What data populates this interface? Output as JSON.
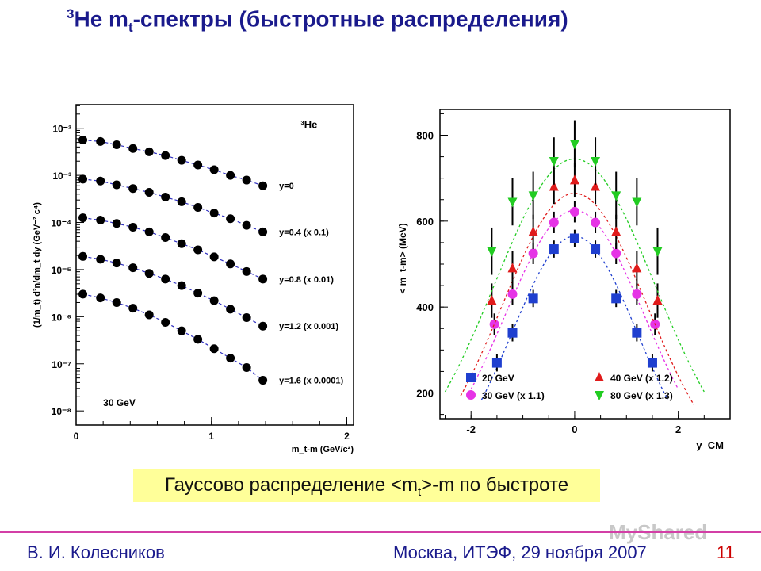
{
  "slide": {
    "title_sup": "3",
    "title_a": "He m",
    "title_sub": "t",
    "title_b": "-спектры (быстротные распределения)",
    "caption_a": "Гауссово распределение <m",
    "caption_sub": "t",
    "caption_b": ">-m по быстроте",
    "footer_author": "В. И. Колесников",
    "footer_place": "Москва, ИТЭФ, 29 ноября 2007",
    "footer_page": "11",
    "watermark": "MyShared",
    "accent_color": "#1a1a8c",
    "footer_line_color": "#d33fa6",
    "caption_bg": "#ffff99"
  },
  "chart_data": [
    {
      "type": "scatter",
      "panel_label": "³He",
      "energy_label": "30 GeV",
      "ylabel": "(1/m_t) d²n/dm_t dy (GeV⁻² c⁴)",
      "xlabel": "m_t-m (GeV/c²)",
      "xlim": [
        0,
        2.05
      ],
      "ylim_log10": [
        -8.3,
        -1.5
      ],
      "log_y": true,
      "x_ticks": [
        0,
        1,
        2
      ],
      "y_tick_labels": [
        "10⁻²",
        "10⁻³",
        "10⁻⁴",
        "10⁻⁵",
        "10⁻⁶",
        "10⁻⁷",
        "10⁻⁸"
      ],
      "y_tick_log10": [
        -2,
        -3,
        -4,
        -5,
        -6,
        -7,
        -8
      ],
      "grid": false,
      "fit_style": "dashed",
      "x": [
        0.05,
        0.18,
        0.3,
        0.42,
        0.54,
        0.66,
        0.78,
        0.9,
        1.02,
        1.14,
        1.26,
        1.38
      ],
      "series": [
        {
          "name": "y=0",
          "log10_values": [
            -2.25,
            -2.28,
            -2.35,
            -2.43,
            -2.5,
            -2.58,
            -2.68,
            -2.78,
            -2.88,
            -3.0,
            -3.1,
            -3.22
          ]
        },
        {
          "name": "y=0.4 (x 0.1)",
          "log10_values": [
            -3.08,
            -3.12,
            -3.2,
            -3.28,
            -3.36,
            -3.46,
            -3.56,
            -3.68,
            -3.8,
            -3.92,
            -4.06,
            -4.2
          ]
        },
        {
          "name": "y=0.8 (x 0.01)",
          "log10_values": [
            -3.9,
            -3.95,
            -4.02,
            -4.1,
            -4.2,
            -4.32,
            -4.45,
            -4.58,
            -4.73,
            -4.88,
            -5.04,
            -5.2
          ]
        },
        {
          "name": "y=1.2 (x 0.001)",
          "log10_values": [
            -4.72,
            -4.78,
            -4.86,
            -4.96,
            -5.08,
            -5.2,
            -5.34,
            -5.5,
            -5.66,
            -5.84,
            -6.02,
            -6.2
          ]
        },
        {
          "name": "y=1.6 (x 0.0001)",
          "log10_values": [
            -5.52,
            -5.6,
            -5.7,
            -5.82,
            -5.96,
            -6.12,
            -6.3,
            -6.48,
            -6.68,
            -6.88,
            -7.08,
            -7.35
          ]
        }
      ]
    },
    {
      "type": "scatter",
      "ylabel": "< m_t-m> (MeV)",
      "xlabel": "y_CM",
      "xlim": [
        -2.6,
        3.0
      ],
      "ylim": [
        140,
        860
      ],
      "x_ticks": [
        -2,
        0,
        2
      ],
      "y_ticks": [
        200,
        400,
        600,
        800
      ],
      "grid": false,
      "legend": "bottom",
      "fit_style": "dotted gaussian",
      "series": [
        {
          "name": "20 GeV",
          "marker": "square",
          "color": "#1f3fcf",
          "x": [
            -1.5,
            -1.2,
            -0.8,
            -0.4,
            0.0,
            0.4,
            0.8,
            1.2,
            1.5
          ],
          "values": [
            270,
            340,
            420,
            535,
            560,
            535,
            420,
            340,
            270
          ],
          "err": 20,
          "fit": {
            "amp": 565,
            "sigma": 1.2,
            "range": [
              -1.8,
              1.8
            ]
          }
        },
        {
          "name": "30 GeV (x 1.1)",
          "marker": "circle",
          "color": "#e633e6",
          "x": [
            -1.55,
            -1.2,
            -0.8,
            -0.4,
            0.0,
            0.4,
            0.8,
            1.2,
            1.55
          ],
          "values": [
            360,
            430,
            525,
            597,
            622,
            597,
            525,
            430,
            360
          ],
          "err": 25,
          "fit": {
            "amp": 625,
            "sigma": 1.35,
            "range": [
              -2.0,
              2.0
            ]
          }
        },
        {
          "name": "40 GeV (x 1.2)",
          "marker": "triangle-up",
          "color": "#e01b1b",
          "x": [
            -1.6,
            -1.2,
            -0.8,
            -0.4,
            0.0,
            0.4,
            0.8,
            1.2,
            1.6
          ],
          "values": [
            415,
            490,
            575,
            680,
            695,
            680,
            575,
            490,
            415
          ],
          "err": 40,
          "fit": {
            "amp": 665,
            "sigma": 1.4,
            "range": [
              -2.2,
              2.3
            ]
          }
        },
        {
          "name": "80 GeV (x 1.3)",
          "marker": "triangle-down",
          "color": "#22cc22",
          "x": [
            -1.6,
            -1.2,
            -0.8,
            -0.4,
            0.0,
            0.4,
            0.8,
            1.2,
            1.6
          ],
          "values": [
            530,
            645,
            660,
            740,
            780,
            740,
            660,
            645,
            530
          ],
          "err": 55,
          "fit": {
            "amp": 745,
            "sigma": 1.55,
            "range": [
              -2.5,
              2.5
            ]
          }
        }
      ]
    }
  ]
}
